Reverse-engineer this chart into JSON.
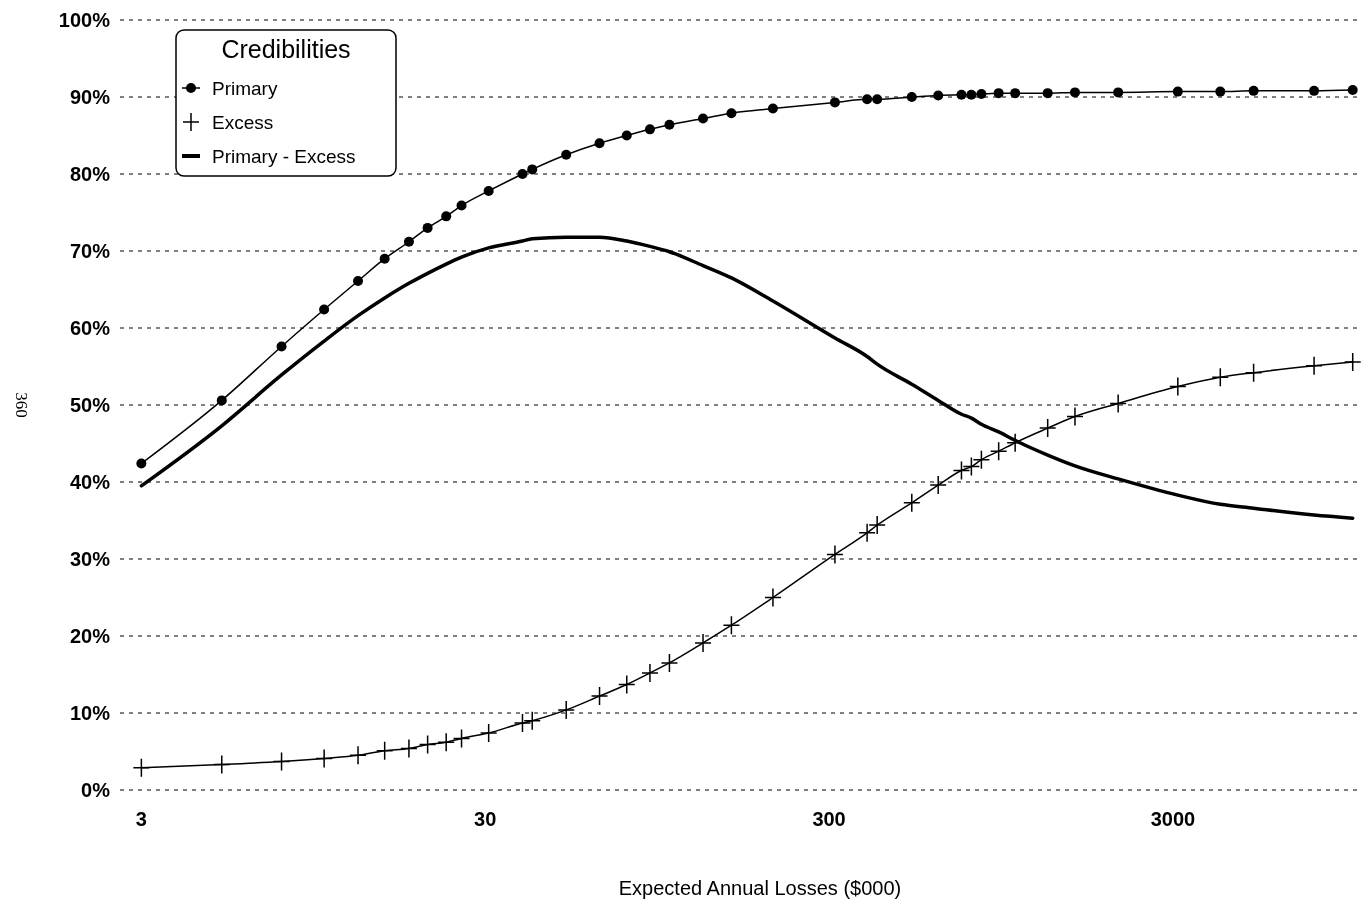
{
  "chart_data": {
    "type": "line",
    "xlabel": "Expected Annual Losses ($000)",
    "ylabel": "360",
    "legend_title": "Credibilities",
    "x": [
      3,
      5.14,
      7.67,
      10.2,
      12.8,
      15.3,
      18.0,
      20.4,
      23.1,
      25.6,
      30.7,
      38.5,
      41.1,
      51.6,
      64.5,
      77.4,
      90.4,
      103,
      129,
      156,
      206,
      312,
      387,
      414,
      522,
      623,
      728,
      778,
      832,
      934,
      1043,
      1297,
      1557,
      2079,
      3100,
      4120,
      5150,
      7720,
      10000
    ],
    "series": [
      {
        "name": "Primary",
        "color": "#000000",
        "marker": "circle",
        "values": [
          42.4,
          50.6,
          57.6,
          62.4,
          66.1,
          69.0,
          71.2,
          73.0,
          74.5,
          75.9,
          77.8,
          80.0,
          80.6,
          82.5,
          84.0,
          85.0,
          85.8,
          86.4,
          87.2,
          87.9,
          88.5,
          89.3,
          89.7,
          89.7,
          90.0,
          90.2,
          90.3,
          90.3,
          90.4,
          90.5,
          90.5,
          90.5,
          90.6,
          90.6,
          90.7,
          90.7,
          90.8,
          90.8,
          90.9
        ]
      },
      {
        "name": "Excess",
        "color": "#000000",
        "marker": "cross",
        "values": [
          2.9,
          3.3,
          3.7,
          4.1,
          4.5,
          5.1,
          5.4,
          5.9,
          6.2,
          6.7,
          7.4,
          8.7,
          9.0,
          10.4,
          12.2,
          13.7,
          15.2,
          16.5,
          19.1,
          21.4,
          25.0,
          30.6,
          33.4,
          34.4,
          37.3,
          39.6,
          41.5,
          42.0,
          42.9,
          44.0,
          45.1,
          47.0,
          48.5,
          50.2,
          52.4,
          53.6,
          54.2,
          55.1,
          55.6
        ]
      },
      {
        "name": "Primary - Excess",
        "color": "#000000",
        "marker": "none",
        "values": [
          39.5,
          47.3,
          53.9,
          58.3,
          61.6,
          63.9,
          65.8,
          67.1,
          68.3,
          69.2,
          70.4,
          71.3,
          71.6,
          71.8,
          71.8,
          71.3,
          70.6,
          69.9,
          68.1,
          66.5,
          63.5,
          58.7,
          56.3,
          55.3,
          52.7,
          50.6,
          48.8,
          48.3,
          47.5,
          46.5,
          45.4,
          43.5,
          42.1,
          40.4,
          38.3,
          37.1,
          36.6,
          35.7,
          35.3
        ]
      }
    ],
    "log": "x",
    "xlim": [
      2.6,
      10500
    ],
    "xticks": [
      3,
      30,
      300,
      3000
    ],
    "ylim": [
      0,
      100
    ],
    "yticks": [
      {
        "value": 0,
        "label": "0%"
      },
      {
        "value": 10,
        "label": "10%"
      },
      {
        "value": 20,
        "label": "20%"
      },
      {
        "value": 30,
        "label": "30%"
      },
      {
        "value": 40,
        "label": "40%"
      },
      {
        "value": 50,
        "label": "50%"
      },
      {
        "value": 60,
        "label": "60%"
      },
      {
        "value": 70,
        "label": "70%"
      },
      {
        "value": 80,
        "label": "80%"
      },
      {
        "value": 90,
        "label": "90%"
      },
      {
        "value": 100,
        "label": "100%"
      }
    ],
    "grid": "y",
    "legend": "top left"
  }
}
